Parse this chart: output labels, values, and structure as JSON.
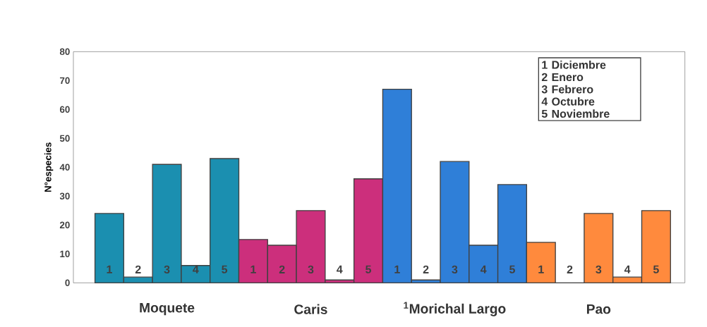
{
  "chart_data": {
    "type": "bar",
    "ylabel": "N°especies",
    "categories": [
      "1",
      "2",
      "3",
      "4",
      "5",
      "1",
      "2",
      "3",
      "4",
      "5",
      "1",
      "2",
      "3",
      "4",
      "5",
      "1",
      "2",
      "3",
      "4",
      "5"
    ],
    "values": [
      24,
      2,
      41,
      6,
      43,
      15,
      13,
      25,
      1,
      36,
      67,
      1,
      42,
      13,
      34,
      14,
      0,
      24,
      2,
      25
    ],
    "colors": [
      "#1b8fb0",
      "#1b8fb0",
      "#1b8fb0",
      "#1b8fb0",
      "#1b8fb0",
      "#cc2f7c",
      "#cc2f7c",
      "#cc2f7c",
      "#cc2f7c",
      "#cc2f7c",
      "#2f7fd8",
      "#2f7fd8",
      "#2f7fd8",
      "#2f7fd8",
      "#2f7fd8",
      "#ff8a3d",
      "#ff8a3d",
      "#ff8a3d",
      "#ff8a3d",
      "#ff8a3d"
    ],
    "ylim": [
      0,
      80
    ],
    "yticks": [
      0,
      10,
      20,
      30,
      40,
      50,
      60,
      70,
      80
    ],
    "grid": false,
    "annotations": [
      "Moquete",
      "Caris",
      "$^{1}$Morichal Largo",
      "Pao",
      "1  Diciembre",
      "2  Enero",
      "3  Febrero",
      "4  Octubre",
      "5  Noviembre"
    ]
  }
}
